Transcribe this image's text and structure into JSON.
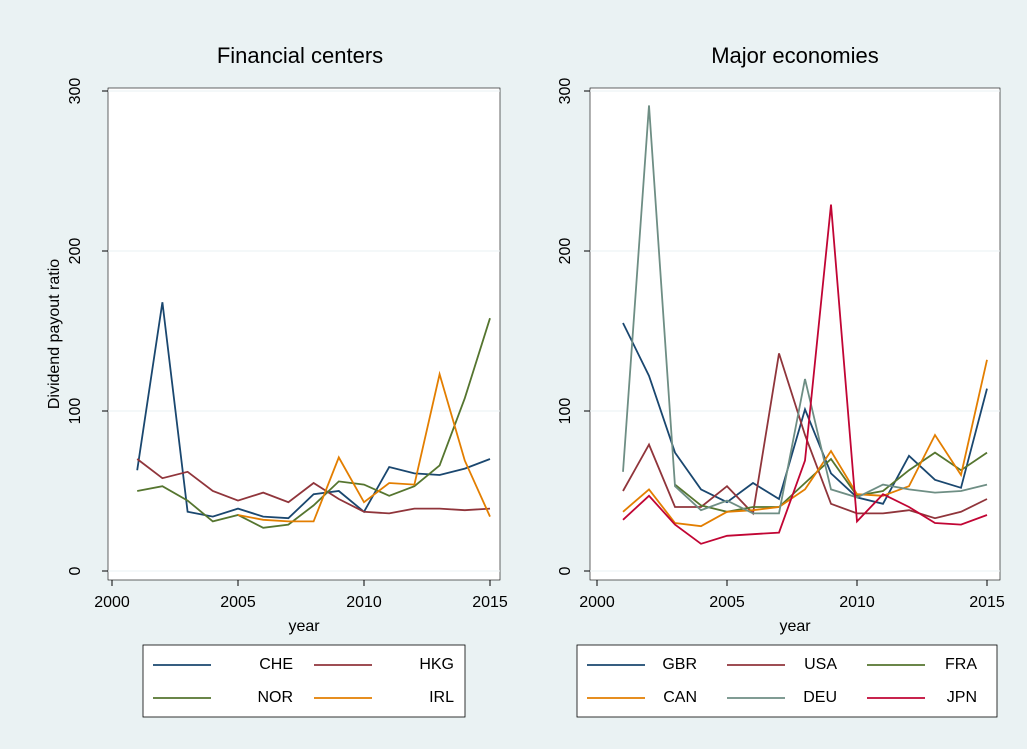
{
  "chart_data": [
    {
      "type": "line",
      "title": "Financial centers",
      "xlabel": "year",
      "ylabel": "Dividend payout ratio",
      "x": [
        2001,
        2002,
        2003,
        2004,
        2005,
        2006,
        2007,
        2008,
        2009,
        2010,
        2011,
        2012,
        2013,
        2014,
        2015
      ],
      "xlim": [
        2000,
        2015
      ],
      "xticks": [
        2000,
        2005,
        2010,
        2015
      ],
      "ylim": [
        0,
        300
      ],
      "yticks": [
        0,
        100,
        200,
        300
      ],
      "series": [
        {
          "name": "CHE",
          "color": "#1a476f",
          "values": [
            63,
            168,
            37,
            34,
            39,
            34,
            33,
            48,
            50,
            37,
            65,
            61,
            60,
            64,
            70
          ]
        },
        {
          "name": "HKG",
          "color": "#90353b",
          "values": [
            70,
            58,
            62,
            50,
            44,
            49,
            43,
            55,
            45,
            37,
            36,
            39,
            39,
            38,
            39
          ]
        },
        {
          "name": "NOR",
          "color": "#55752f",
          "values": [
            50,
            53,
            44,
            31,
            35,
            27,
            29,
            41,
            56,
            54,
            47,
            53,
            66,
            108,
            158
          ]
        },
        {
          "name": "IRL",
          "color": "#e37e00",
          "values": [
            null,
            null,
            null,
            null,
            35,
            32,
            31,
            31,
            71,
            43,
            55,
            54,
            123,
            69,
            34
          ]
        }
      ]
    },
    {
      "type": "line",
      "title": "Major economies",
      "xlabel": "year",
      "x": [
        2001,
        2002,
        2003,
        2004,
        2005,
        2006,
        2007,
        2008,
        2009,
        2010,
        2011,
        2012,
        2013,
        2014,
        2015
      ],
      "xlim": [
        2000,
        2015
      ],
      "xticks": [
        2000,
        2005,
        2010,
        2015
      ],
      "ylim": [
        0,
        300
      ],
      "yticks": [
        0,
        100,
        200,
        300
      ],
      "series": [
        {
          "name": "GBR",
          "color": "#1a476f",
          "values": [
            155,
            122,
            74,
            51,
            43,
            55,
            45,
            101,
            61,
            46,
            42,
            72,
            57,
            52,
            114
          ]
        },
        {
          "name": "USA",
          "color": "#90353b",
          "values": [
            50,
            79,
            40,
            40,
            53,
            36,
            136,
            85,
            42,
            36,
            36,
            38,
            33,
            37,
            45
          ]
        },
        {
          "name": "FRA",
          "color": "#55752f",
          "values": [
            null,
            null,
            54,
            41,
            37,
            40,
            40,
            55,
            70,
            47,
            50,
            63,
            74,
            63,
            74
          ]
        },
        {
          "name": "CAN",
          "color": "#e37e00",
          "values": [
            37,
            51,
            30,
            28,
            37,
            38,
            40,
            51,
            75,
            48,
            47,
            53,
            85,
            60,
            132
          ]
        },
        {
          "name": "DEU",
          "color": "#6e8e84",
          "values": [
            62,
            291,
            53,
            38,
            44,
            36,
            36,
            120,
            51,
            46,
            54,
            51,
            49,
            50,
            54
          ]
        },
        {
          "name": "JPN",
          "color": "#c10534",
          "values": [
            32,
            47,
            29,
            17,
            22,
            23,
            24,
            69,
            229,
            31,
            48,
            40,
            30,
            29,
            35
          ]
        }
      ]
    }
  ]
}
